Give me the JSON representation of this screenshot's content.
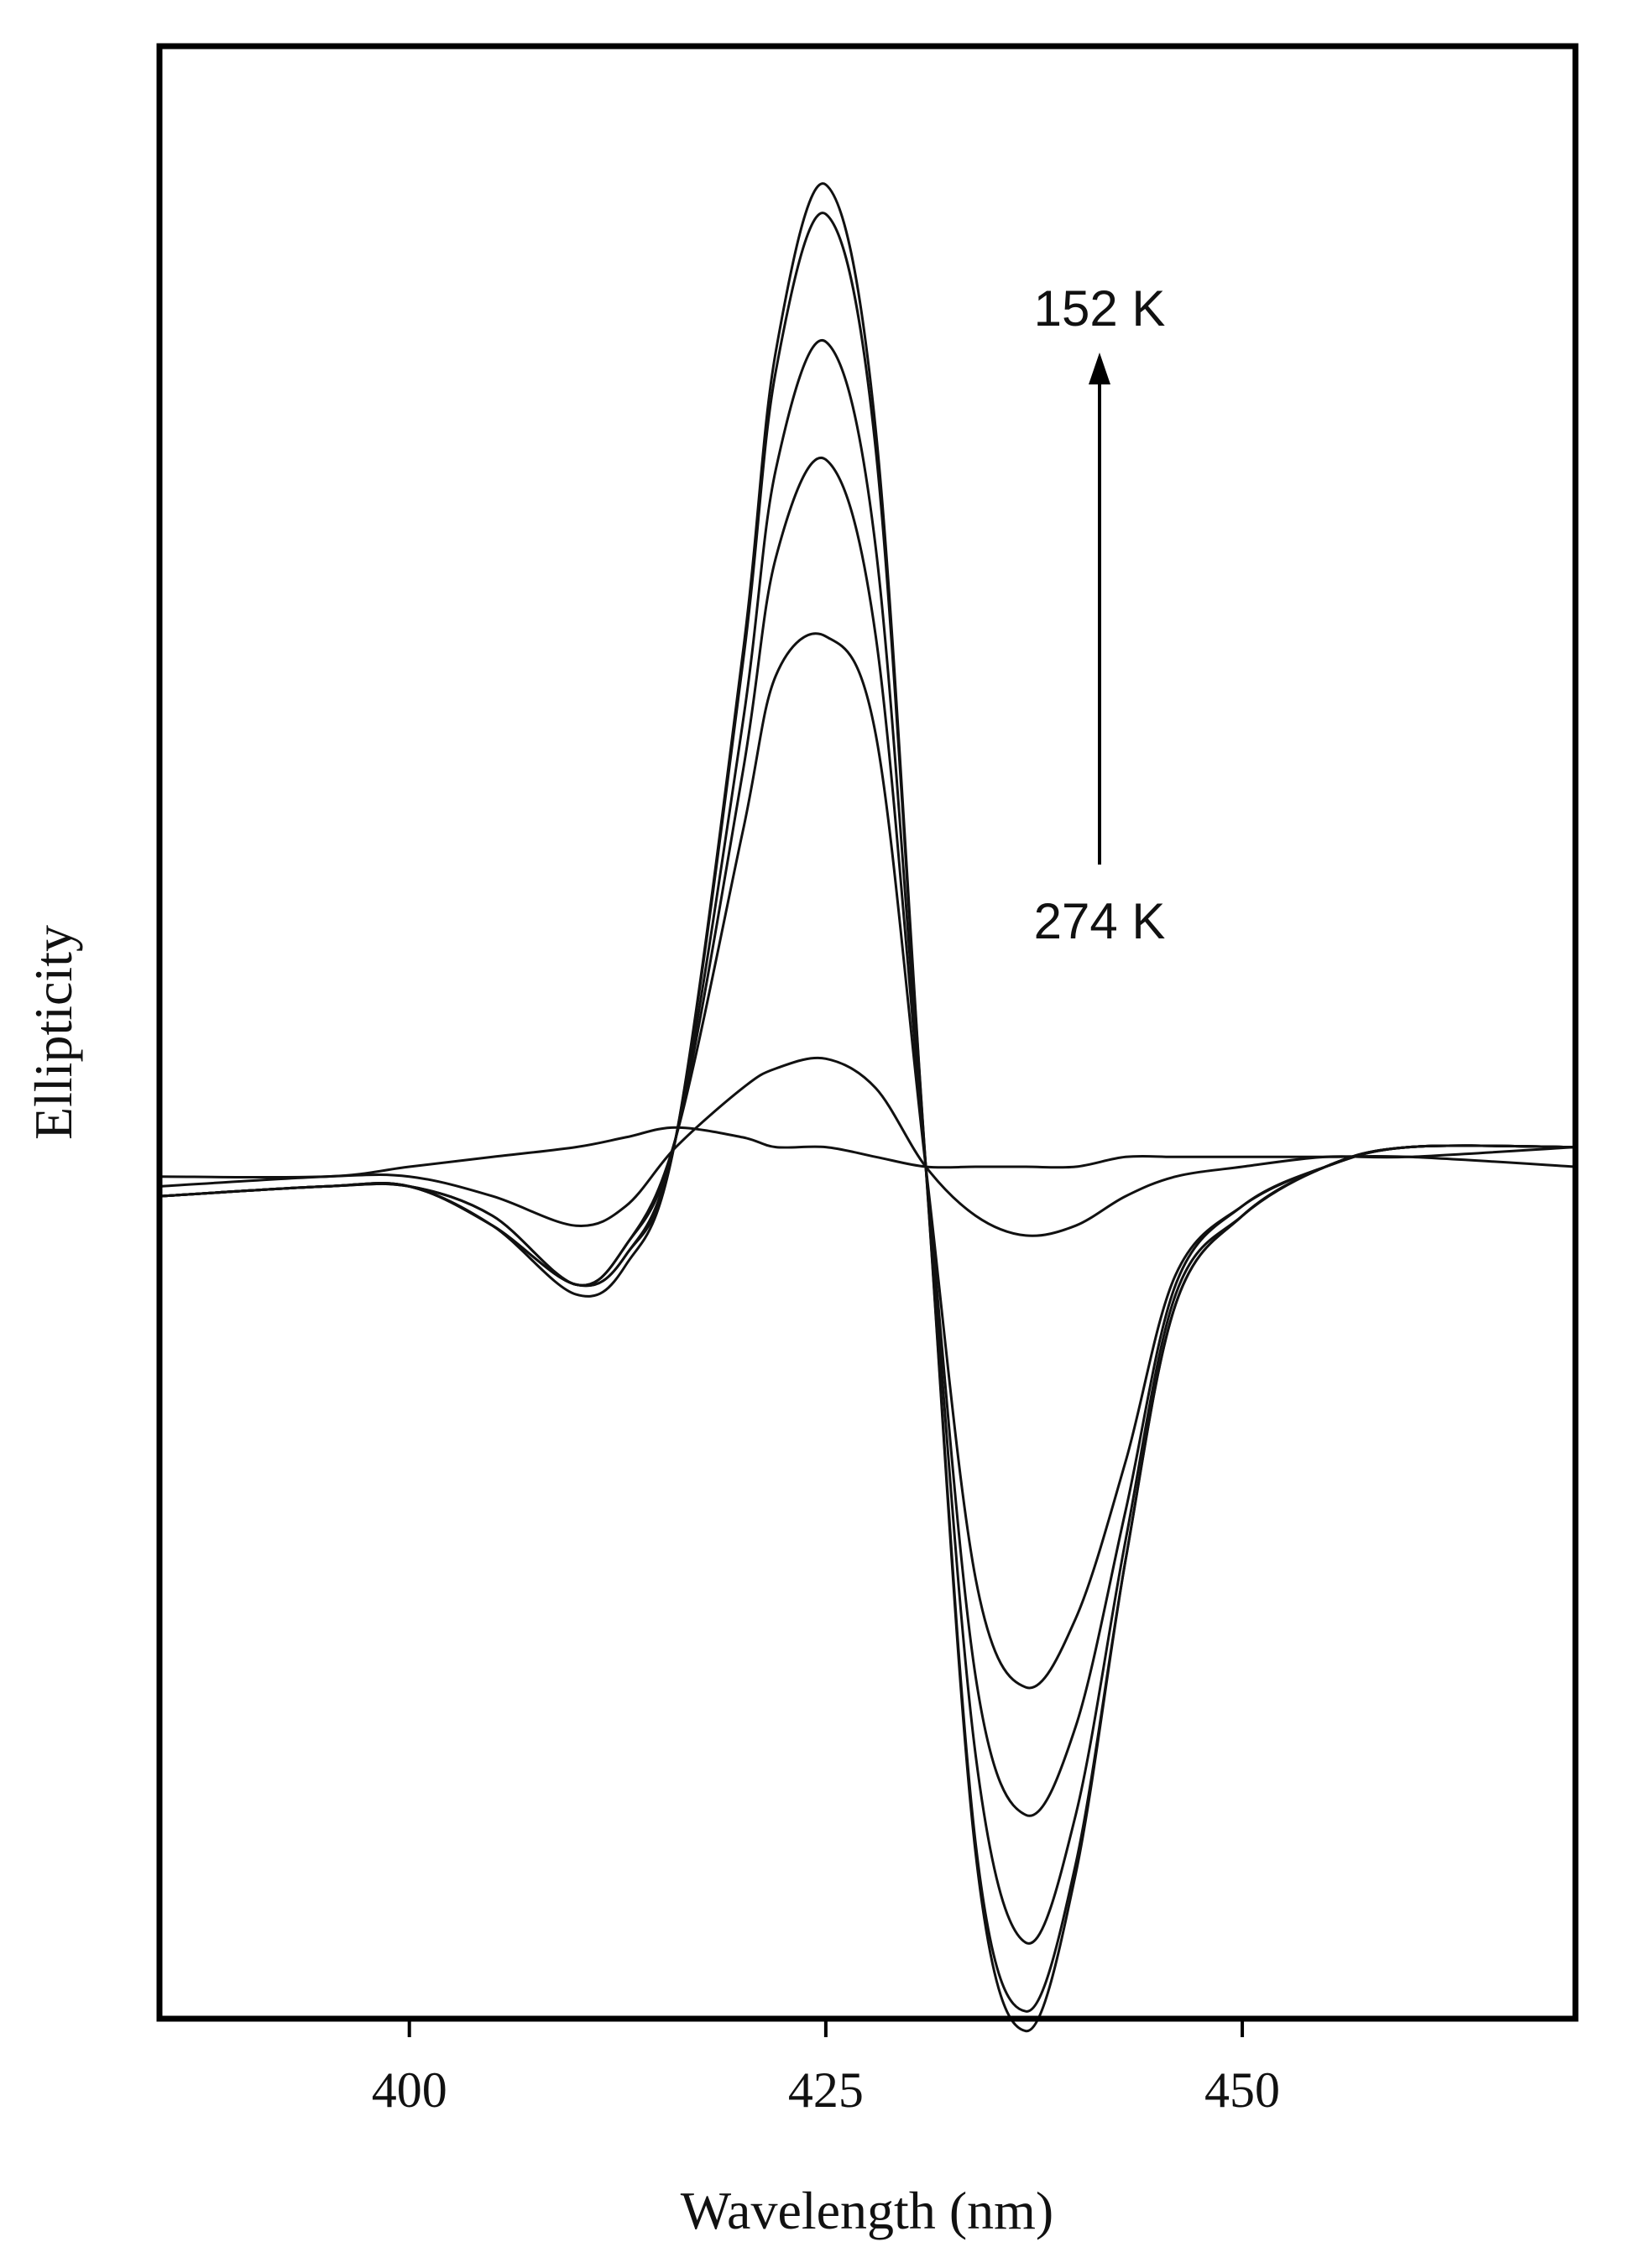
{
  "chart_data": {
    "type": "line",
    "title": "",
    "xlabel": "Wavelength (nm)",
    "ylabel": "Ellipticity",
    "xlim": [
      385,
      470
    ],
    "ylim": [
      -1.0,
      1.0
    ],
    "x_ticks": [
      400,
      425,
      450
    ],
    "x_tick_labels": [
      "400",
      "425",
      "450"
    ],
    "y_ticks_shown": false,
    "grid": false,
    "legend": "none",
    "colors": {
      "lines": "#111111",
      "frame": "#000000",
      "background": "#ffffff"
    },
    "annotations": {
      "arrow_top_label": "152 K",
      "arrow_bottom_label": "274 K",
      "arrow_direction": "up"
    },
    "x": [
      385,
      395,
      400,
      405,
      410,
      413,
      416,
      420,
      422,
      425,
      428,
      431,
      434,
      437,
      440,
      443,
      446,
      450,
      455,
      460,
      470
    ],
    "series": [
      {
        "values": [
          -0.03,
          -0.02,
          -0.02,
          -0.06,
          -0.13,
          -0.1,
          0.03,
          0.52,
          0.83,
          1.0,
          0.75,
          0.0,
          -0.7,
          -0.88,
          -0.72,
          -0.4,
          -0.14,
          -0.05,
          0.0,
          0.02,
          0.02
        ]
      },
      {
        "values": [
          -0.03,
          -0.02,
          -0.02,
          -0.06,
          -0.12,
          -0.09,
          0.03,
          0.51,
          0.81,
          0.97,
          0.73,
          0.0,
          -0.69,
          -0.86,
          -0.71,
          -0.4,
          -0.14,
          -0.05,
          0.0,
          0.02,
          0.02
        ]
      },
      {
        "values": [
          -0.03,
          -0.02,
          -0.02,
          -0.06,
          -0.12,
          -0.09,
          0.03,
          0.45,
          0.71,
          0.84,
          0.63,
          0.0,
          -0.6,
          -0.79,
          -0.66,
          -0.38,
          -0.13,
          -0.05,
          0.0,
          0.02,
          0.02
        ]
      },
      {
        "values": [
          -0.03,
          -0.02,
          -0.02,
          -0.05,
          -0.12,
          -0.08,
          0.03,
          0.4,
          0.62,
          0.72,
          0.54,
          0.0,
          -0.52,
          -0.66,
          -0.57,
          -0.35,
          -0.12,
          -0.04,
          0.0,
          0.02,
          0.02
        ]
      },
      {
        "values": [
          -0.03,
          -0.02,
          -0.02,
          -0.05,
          -0.12,
          -0.08,
          0.03,
          0.34,
          0.5,
          0.54,
          0.44,
          0.0,
          -0.42,
          -0.53,
          -0.46,
          -0.3,
          -0.11,
          -0.04,
          0.0,
          0.02,
          0.02
        ]
      },
      {
        "values": [
          -0.02,
          -0.01,
          -0.01,
          -0.03,
          -0.06,
          -0.04,
          0.02,
          0.08,
          0.1,
          0.11,
          0.08,
          0.0,
          -0.05,
          -0.07,
          -0.06,
          -0.03,
          -0.01,
          0.0,
          0.01,
          0.01,
          0.02
        ]
      },
      {
        "values": [
          -0.01,
          -0.01,
          0.0,
          0.01,
          0.02,
          0.03,
          0.04,
          0.03,
          0.02,
          0.02,
          0.01,
          0.0,
          0.0,
          0.0,
          0.0,
          0.01,
          0.01,
          0.01,
          0.01,
          0.01,
          0.0
        ]
      }
    ]
  }
}
